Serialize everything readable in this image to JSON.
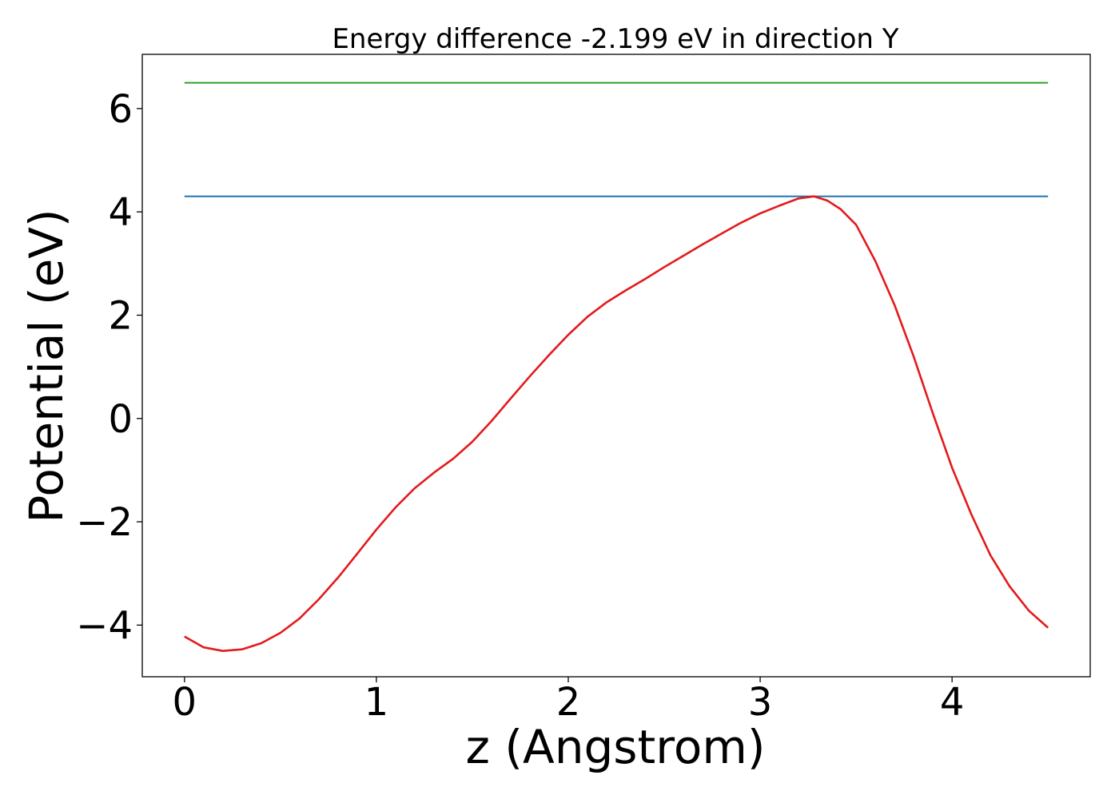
{
  "chart_data": {
    "type": "line",
    "title": "Energy difference -2.199 eV in direction Y",
    "xlabel": "z (Angstrom)",
    "ylabel": "Potential (eV)",
    "xlim": [
      -0.22,
      4.72
    ],
    "ylim": [
      -5.0,
      7.05
    ],
    "xticks": [
      0,
      1,
      2,
      3,
      4
    ],
    "yticks": [
      -4,
      -2,
      0,
      2,
      4,
      6
    ],
    "xtick_labels": [
      "0",
      "1",
      "2",
      "3",
      "4"
    ],
    "ytick_labels": [
      "−4",
      "−2",
      "0",
      "2",
      "4",
      "6"
    ],
    "grid": false,
    "series": [
      {
        "color": "#2ca02c",
        "x": [
          0,
          4.5
        ],
        "y": [
          6.5,
          6.5
        ]
      },
      {
        "color": "#1f77b4",
        "x": [
          0,
          4.5
        ],
        "y": [
          4.3,
          4.3
        ]
      },
      {
        "color": "#e31a1c",
        "x": [
          0,
          0.1,
          0.2,
          0.3,
          0.4,
          0.5,
          0.6,
          0.7,
          0.8,
          0.9,
          1.0,
          1.1,
          1.2,
          1.3,
          1.4,
          1.5,
          1.6,
          1.7,
          1.8,
          1.9,
          2.0,
          2.1,
          2.2,
          2.3,
          2.4,
          2.5,
          2.6,
          2.7,
          2.8,
          2.9,
          3.0,
          3.1,
          3.2,
          3.28,
          3.35,
          3.42,
          3.5,
          3.6,
          3.7,
          3.8,
          3.9,
          4.0,
          4.1,
          4.2,
          4.3,
          4.4,
          4.5
        ],
        "y": [
          -4.22,
          -4.43,
          -4.5,
          -4.47,
          -4.35,
          -4.15,
          -3.87,
          -3.5,
          -3.08,
          -2.62,
          -2.15,
          -1.72,
          -1.35,
          -1.05,
          -0.78,
          -0.45,
          -0.05,
          0.39,
          0.82,
          1.23,
          1.62,
          1.97,
          2.25,
          2.48,
          2.7,
          2.93,
          3.15,
          3.37,
          3.58,
          3.79,
          3.97,
          4.12,
          4.26,
          4.3,
          4.22,
          4.05,
          3.75,
          3.05,
          2.2,
          1.2,
          0.1,
          -0.95,
          -1.85,
          -2.65,
          -3.25,
          -3.72,
          -4.05
        ]
      }
    ]
  }
}
